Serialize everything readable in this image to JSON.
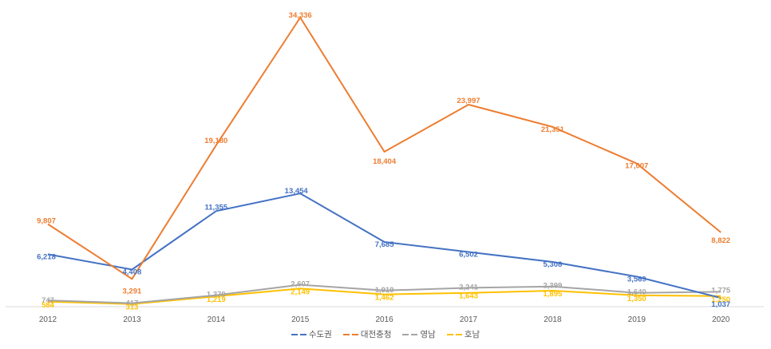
{
  "chart_data": {
    "type": "line",
    "title": "",
    "xlabel": "",
    "ylabel": "",
    "categories": [
      "2012",
      "2013",
      "2014",
      "2015",
      "2016",
      "2017",
      "2018",
      "2019",
      "2020"
    ],
    "ylim": [
      0,
      34336
    ],
    "grid": false,
    "legend_position": "bottom",
    "series": [
      {
        "name": "수도권",
        "color": "#4472C4",
        "values": [
          6218,
          4408,
          11355,
          13454,
          7685,
          6502,
          5308,
          3569,
          1037
        ]
      },
      {
        "name": "대전충청",
        "color": "#ED7D31",
        "values": [
          9807,
          3291,
          19180,
          34336,
          18404,
          23997,
          21351,
          17007,
          8822
        ]
      },
      {
        "name": "영남",
        "color": "#A5A5A5",
        "values": [
          747,
          417,
          1370,
          2607,
          1919,
          2241,
          2399,
          1640,
          1775
        ]
      },
      {
        "name": "호남",
        "color": "#FFC000",
        "values": [
          584,
          313,
          1219,
          2149,
          1462,
          1643,
          1895,
          1350,
          1250
        ]
      }
    ],
    "value_labels": {
      "수도권": [
        "6,218",
        "4,408",
        "11,355",
        "13,454",
        "7,685",
        "6,502",
        "5,308",
        "3,569",
        "1,037"
      ],
      "대전충청": [
        "9,807",
        "3,291",
        "19,180",
        "34,336",
        "18,404",
        "23,997",
        "21,351",
        "17,007",
        "8,822"
      ],
      "영남": [
        "747",
        "417",
        "1,370",
        "2,607",
        "1,919",
        "2,241",
        "2,399",
        "1,640",
        "1,775"
      ],
      "호남": [
        "584",
        "313",
        "1,219",
        "2,149",
        "1,462",
        "1,643",
        "1,895",
        "1,350",
        "1,250"
      ]
    }
  },
  "legend": {
    "items": [
      {
        "label": "수도권",
        "color": "#4472C4"
      },
      {
        "label": "대전충청",
        "color": "#ED7D31"
      },
      {
        "label": "영남",
        "color": "#A5A5A5"
      },
      {
        "label": "호남",
        "color": "#FFC000"
      }
    ]
  },
  "axis": {
    "line_color": "#D9D9D9",
    "tick_color": "#595959"
  }
}
